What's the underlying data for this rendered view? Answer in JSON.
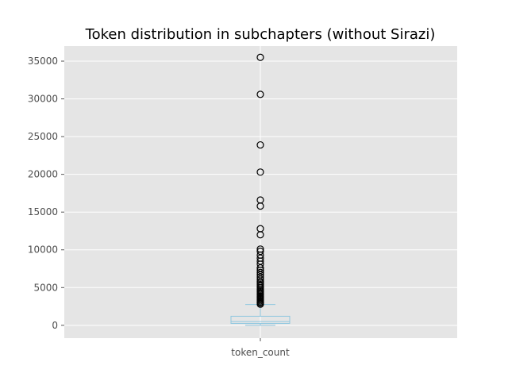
{
  "chart_data": {
    "type": "box",
    "title": "Token distribution in subchapters (without Sirazi)",
    "xlabel": "",
    "ylabel": "",
    "categories": [
      "token_count"
    ],
    "ylim": [
      -1700,
      37000
    ],
    "yticks": [
      0,
      5000,
      10000,
      15000,
      20000,
      25000,
      30000,
      35000
    ],
    "grid": true,
    "box": {
      "lower_whisker": 0,
      "q1": 250,
      "median": 500,
      "q3": 1200,
      "upper_whisker": 2750
    },
    "outliers": [
      2800,
      2950,
      3100,
      3250,
      3400,
      3550,
      3700,
      3850,
      4000,
      4150,
      4300,
      4450,
      4600,
      4800,
      5000,
      5200,
      5400,
      5600,
      5800,
      6100,
      6400,
      6700,
      7000,
      7300,
      7600,
      8100,
      8500,
      8900,
      9300,
      9800,
      10100,
      12000,
      12800,
      15800,
      16600,
      20300,
      23900,
      30600,
      35500
    ],
    "colors": {
      "plot_background": "#e5e5e5",
      "grid": "#ffffff",
      "box": "#8fc7e0",
      "median": "#8fc7e0",
      "outlier_edge": "#000000"
    }
  }
}
